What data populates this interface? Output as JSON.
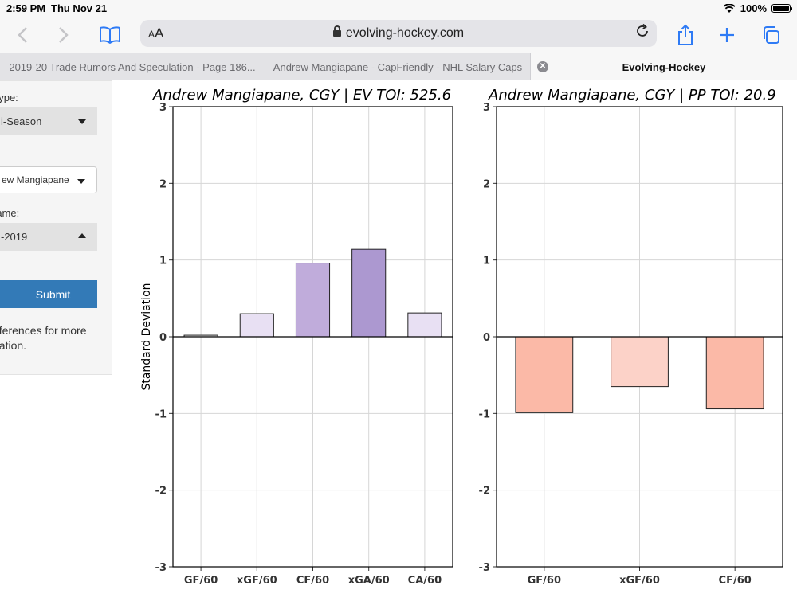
{
  "status_bar": {
    "time": "2:59 PM",
    "date": "Thu Nov 21",
    "battery": "100%"
  },
  "toolbar": {
    "aa_small": "A",
    "aa_large": "A",
    "url": "evolving-hockey.com"
  },
  "tabs": [
    {
      "label": "2019-20 Trade Rumors And Speculation - Page 186..."
    },
    {
      "label": "Andrew Mangiapane - CapFriendly - NHL Salary Caps"
    },
    {
      "label": "Evolving-Hockey"
    }
  ],
  "sidebar": {
    "type_label": "Type:",
    "type_value": "i-Season",
    "player_label": "l",
    "player_value": "ew Mangiapane",
    "timeframe_label": "rame:",
    "timeframe_value": "-2019",
    "submit_label": "Submit",
    "note_line1": "eferences for more",
    "note_line2": "nation."
  },
  "colors": {
    "ev_bars": [
      "#ebebeb",
      "#e8e0f3",
      "#c0acdb",
      "#ac98d0",
      "#e8e0f3"
    ],
    "pp_bars": [
      "#fbb9a7",
      "#fcd2c8",
      "#fbb9a7"
    ]
  },
  "chart_data": [
    {
      "type": "bar",
      "title": "Andrew Mangiapane, CGY  |  EV TOI: 525.6",
      "xlabel": "",
      "ylabel": "Standard Deviation",
      "categories": [
        "GF/60",
        "xGF/60",
        "CF/60",
        "xGA/60",
        "CA/60"
      ],
      "values": [
        0.02,
        0.3,
        0.96,
        1.14,
        0.31
      ],
      "ylim": [
        -3,
        3
      ],
      "yticks": [
        "3",
        "2",
        "1",
        "0",
        "-1",
        "-2",
        "-3"
      ],
      "grid": true
    },
    {
      "type": "bar",
      "title": "Andrew Mangiapane, CGY  |  PP TOI: 20.9",
      "xlabel": "",
      "ylabel": "",
      "categories": [
        "GF/60",
        "xGF/60",
        "CF/60"
      ],
      "values": [
        -0.99,
        -0.65,
        -0.94
      ],
      "ylim": [
        -3,
        3
      ],
      "yticks": [
        "3",
        "2",
        "1",
        "0",
        "-1",
        "-2",
        "-3"
      ],
      "grid": true
    }
  ]
}
